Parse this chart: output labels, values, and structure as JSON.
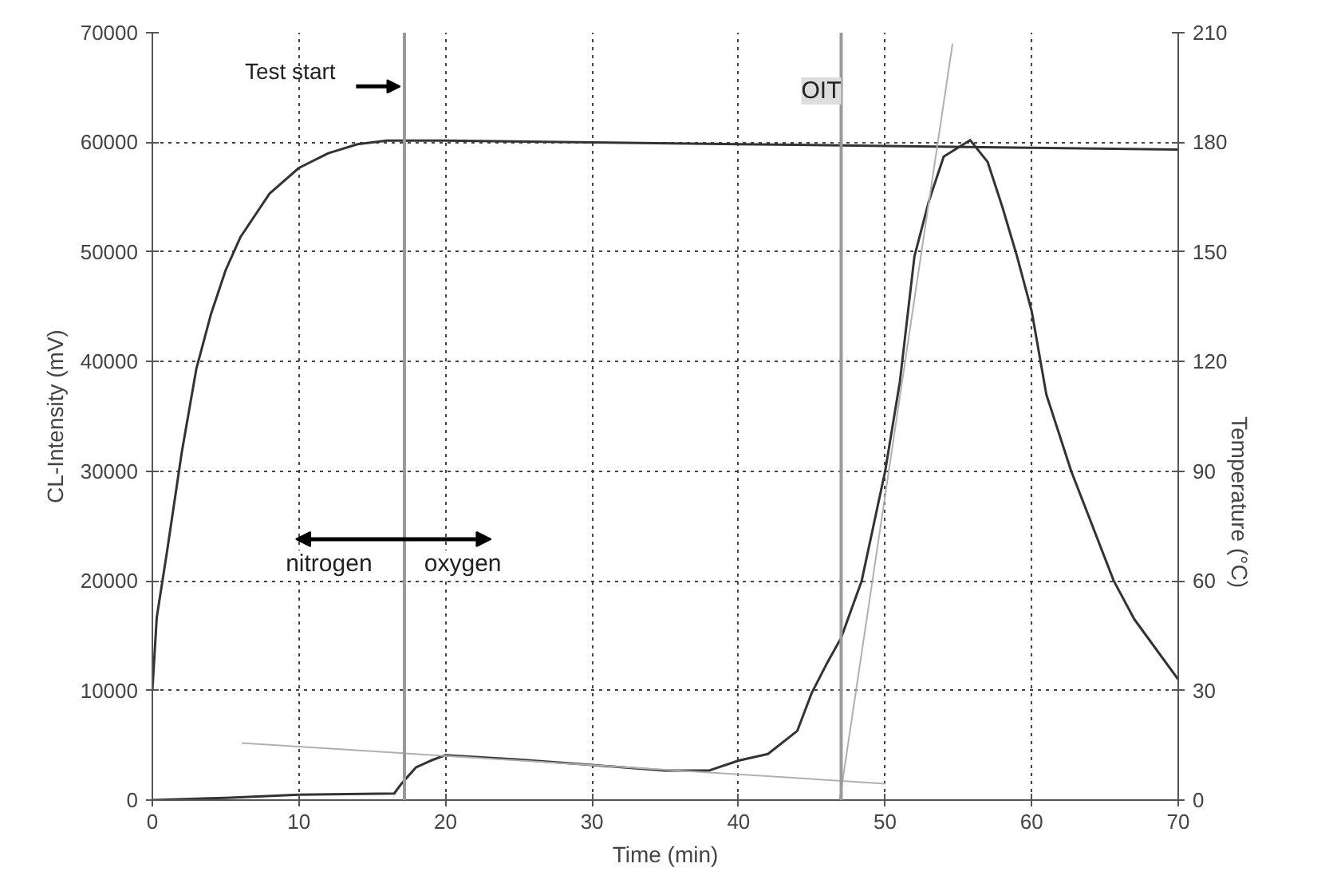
{
  "chart_data": {
    "type": "line",
    "xlabel": "Time (min)",
    "ylabel": "CL-Intensity (mV)",
    "y2label": "Temperature (°C)",
    "xlim": [
      0,
      70
    ],
    "xticks": [
      0,
      10,
      20,
      30,
      40,
      50,
      60,
      70
    ],
    "ylim": [
      0,
      70000
    ],
    "yticks": [
      0,
      10000,
      20000,
      30000,
      40000,
      50000,
      60000,
      70000
    ],
    "y2lim": [
      0,
      210
    ],
    "y2ticks": [
      0,
      30,
      60,
      90,
      120,
      150,
      180,
      210
    ],
    "grid": true,
    "line_style": "solid",
    "series": [
      {
        "color": "#333333",
        "axis": "y2",
        "x": [
          0,
          0.3,
          1,
          2,
          3,
          4,
          5,
          6,
          8,
          10,
          12,
          14,
          16,
          20,
          30,
          40,
          50,
          60,
          70
        ],
        "values": [
          30,
          50,
          68,
          95,
          118,
          133,
          145,
          154,
          166,
          173,
          177,
          179.5,
          180.5,
          180.5,
          180,
          179.5,
          179,
          178.5,
          178
        ]
      },
      {
        "color": "#333333",
        "x": [
          0,
          5,
          10,
          16.5,
          17,
          18,
          19,
          20,
          25,
          30,
          35,
          38,
          40,
          42,
          44,
          45,
          46,
          47,
          48.4,
          50,
          51,
          52,
          53,
          54,
          55.8,
          57,
          58,
          59,
          60,
          61,
          62.7,
          65.6,
          67,
          70
        ],
        "values": [
          0,
          200,
          500,
          600,
          1500,
          3000,
          3600,
          4100,
          3700,
          3200,
          2700,
          2700,
          3600,
          4200,
          6300,
          9800,
          12400,
          14800,
          20000,
          30000,
          38100,
          49600,
          54700,
          58700,
          60200,
          58200,
          54100,
          49600,
          44600,
          37000,
          30000,
          20000,
          16500,
          11000
        ]
      },
      {
        "color": "#b0b0b0",
        "type": "line",
        "x": [
          6.1,
          50
        ],
        "values": [
          5200,
          1500
        ]
      },
      {
        "color": "#b0b0b0",
        "type": "line",
        "x": [
          46.9,
          54.6
        ],
        "values": [
          0,
          69000
        ]
      }
    ],
    "ref_lines": [
      {
        "axis": "x",
        "value": 17.2,
        "label": "Test start",
        "color": "#999999"
      },
      {
        "axis": "x",
        "value": 47,
        "label": "OIT",
        "color": "#999999"
      }
    ],
    "annotations": [
      "nitrogen",
      "oxygen"
    ]
  }
}
